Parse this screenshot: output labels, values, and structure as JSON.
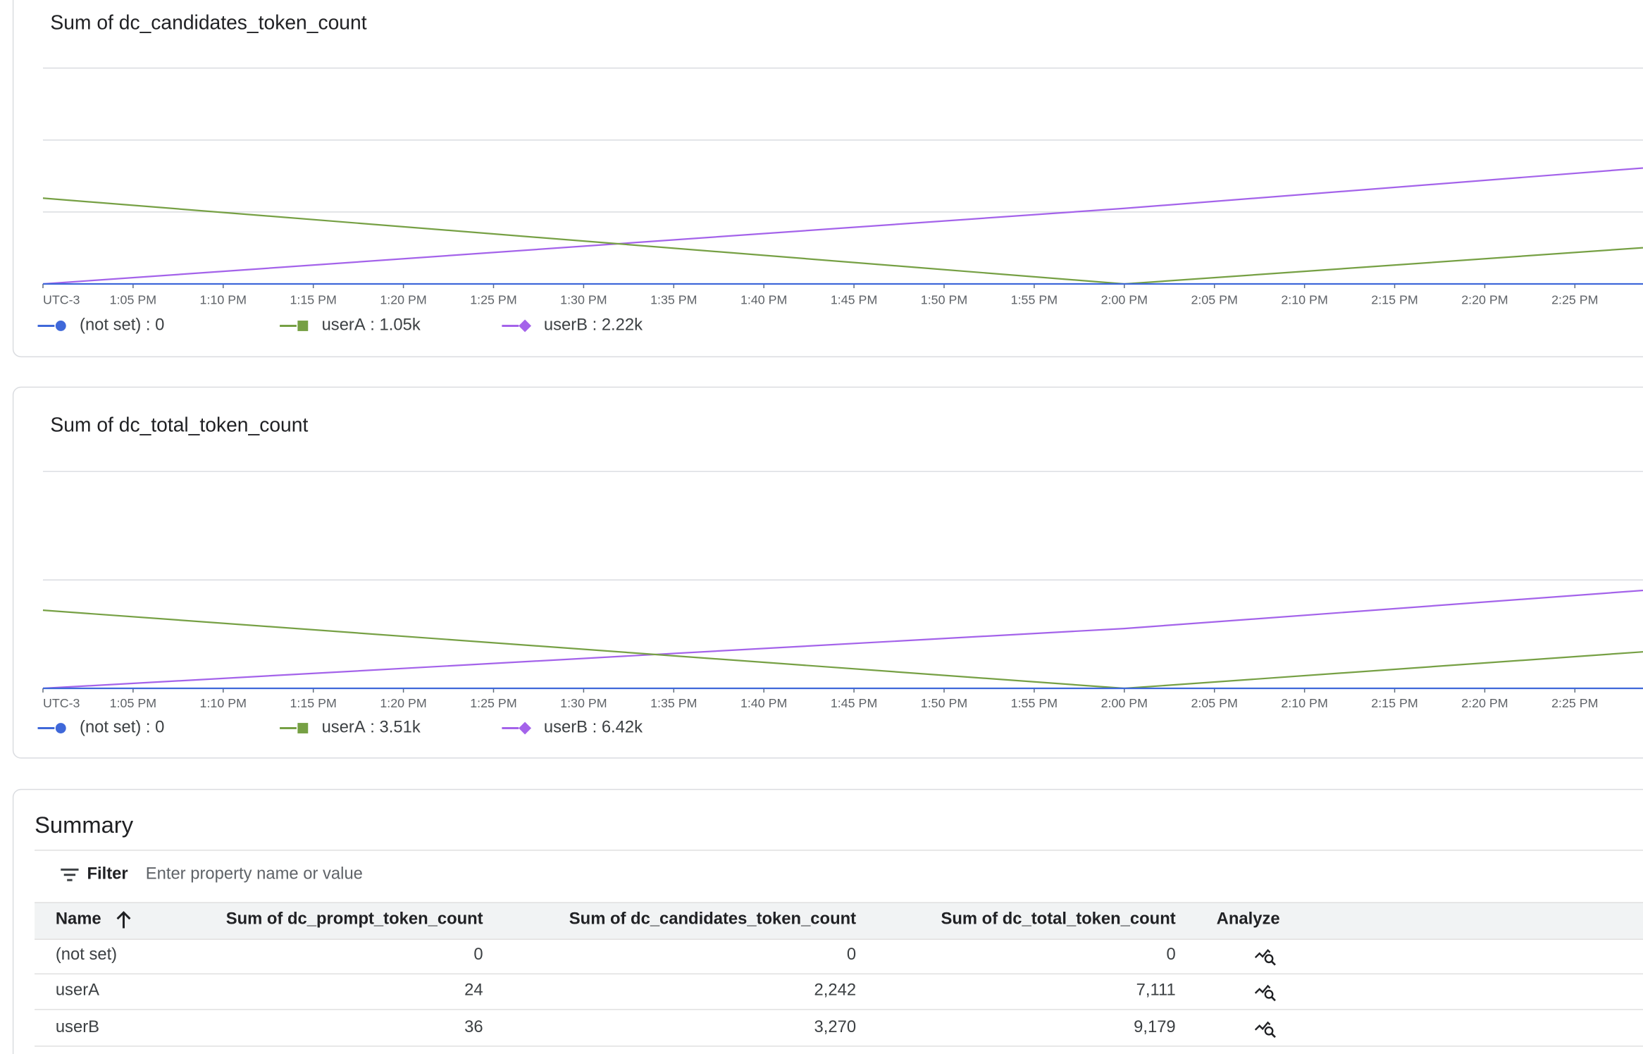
{
  "chart_data": [
    {
      "type": "line",
      "title": "Sum of dc_candidates_token_count",
      "x": [
        "13:00",
        "14:00",
        "15:00"
      ],
      "xlim": [
        "13:00",
        "15:00"
      ],
      "xticks": [
        {
          "value": "13:00",
          "label": "UTC-3"
        },
        {
          "value": "13:05",
          "label": "1:05 PM"
        },
        {
          "value": "13:10",
          "label": "1:10 PM"
        },
        {
          "value": "13:15",
          "label": "1:15 PM"
        },
        {
          "value": "13:20",
          "label": "1:20 PM"
        },
        {
          "value": "13:25",
          "label": "1:25 PM"
        },
        {
          "value": "13:30",
          "label": "1:30 PM"
        },
        {
          "value": "13:35",
          "label": "1:35 PM"
        },
        {
          "value": "13:40",
          "label": "1:40 PM"
        },
        {
          "value": "13:45",
          "label": "1:45 PM"
        },
        {
          "value": "13:50",
          "label": "1:50 PM"
        },
        {
          "value": "13:55",
          "label": "1:55 PM"
        },
        {
          "value": "14:00",
          "label": "2:00 PM"
        },
        {
          "value": "14:05",
          "label": "2:05 PM"
        },
        {
          "value": "14:10",
          "label": "2:10 PM"
        },
        {
          "value": "14:15",
          "label": "2:15 PM"
        },
        {
          "value": "14:20",
          "label": "2:20 PM"
        },
        {
          "value": "14:25",
          "label": "2:25 PM"
        }
      ],
      "ylim": [
        0,
        3000
      ],
      "yticks": [
        0,
        1000,
        2000,
        3000
      ],
      "grid": true,
      "series": [
        {
          "name": "(not set)",
          "color": "#3f68d9",
          "marker": "circle",
          "values": [
            0,
            0,
            0
          ],
          "legend_value": "0"
        },
        {
          "name": "userA",
          "color": "#76a044",
          "marker": "square",
          "values": [
            1192,
            0,
            1050
          ],
          "legend_value": "1.05k"
        },
        {
          "name": "userB",
          "color": "#a463ea",
          "marker": "diamond",
          "values": [
            0,
            1050,
            2220
          ],
          "legend_value": "2.22k"
        }
      ]
    },
    {
      "type": "line",
      "title": "Sum of dc_total_token_count",
      "x": [
        "13:00",
        "14:00",
        "15:00"
      ],
      "xlim": [
        "13:00",
        "15:00"
      ],
      "xticks": [
        {
          "value": "13:00",
          "label": "UTC-3"
        },
        {
          "value": "13:05",
          "label": "1:05 PM"
        },
        {
          "value": "13:10",
          "label": "1:10 PM"
        },
        {
          "value": "13:15",
          "label": "1:15 PM"
        },
        {
          "value": "13:20",
          "label": "1:20 PM"
        },
        {
          "value": "13:25",
          "label": "1:25 PM"
        },
        {
          "value": "13:30",
          "label": "1:30 PM"
        },
        {
          "value": "13:35",
          "label": "1:35 PM"
        },
        {
          "value": "13:40",
          "label": "1:40 PM"
        },
        {
          "value": "13:45",
          "label": "1:45 PM"
        },
        {
          "value": "13:50",
          "label": "1:50 PM"
        },
        {
          "value": "13:55",
          "label": "1:55 PM"
        },
        {
          "value": "14:00",
          "label": "2:00 PM"
        },
        {
          "value": "14:05",
          "label": "2:05 PM"
        },
        {
          "value": "14:10",
          "label": "2:10 PM"
        },
        {
          "value": "14:15",
          "label": "2:15 PM"
        },
        {
          "value": "14:20",
          "label": "2:20 PM"
        },
        {
          "value": "14:25",
          "label": "2:25 PM"
        }
      ],
      "ylim": [
        0,
        10000
      ],
      "yticks": [
        0,
        5000,
        10000
      ],
      "grid": true,
      "series": [
        {
          "name": "(not set)",
          "color": "#3f68d9",
          "marker": "circle",
          "values": [
            0,
            0,
            0
          ],
          "legend_value": "0"
        },
        {
          "name": "userA",
          "color": "#76a044",
          "marker": "square",
          "values": [
            3601,
            0,
            3510
          ],
          "legend_value": "3.51k"
        },
        {
          "name": "userB",
          "color": "#a463ea",
          "marker": "diamond",
          "values": [
            0,
            2759,
            6420
          ],
          "legend_value": "6.42k"
        }
      ]
    }
  ],
  "summary": {
    "title": "Summary",
    "filter": {
      "label": "Filter",
      "placeholder": "Enter property name or value"
    },
    "columns": [
      "Name",
      "Sum of dc_prompt_token_count",
      "Sum of dc_candidates_token_count",
      "Sum of dc_total_token_count",
      "Analyze"
    ],
    "rows": [
      [
        "(not set)",
        "0",
        "0",
        "0"
      ],
      [
        "userA",
        "24",
        "2,242",
        "7,111"
      ],
      [
        "userB",
        "36",
        "3,270",
        "9,179"
      ]
    ]
  }
}
